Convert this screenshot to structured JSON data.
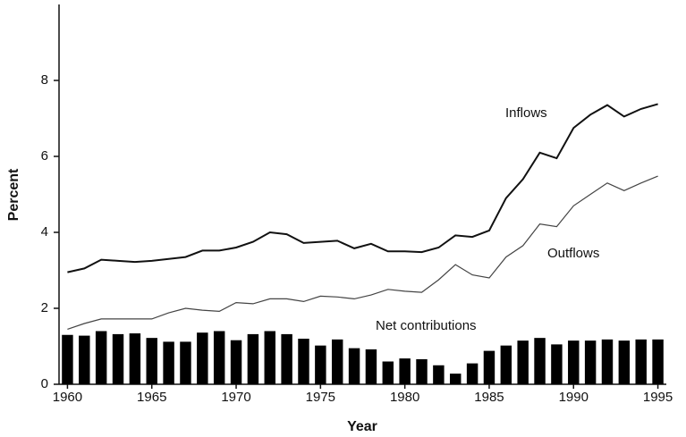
{
  "chart_data": {
    "type": "combo",
    "x_label": "Year",
    "y_label": "Percent",
    "x": [
      1960,
      1961,
      1962,
      1963,
      1964,
      1965,
      1966,
      1967,
      1968,
      1969,
      1970,
      1971,
      1972,
      1973,
      1974,
      1975,
      1976,
      1977,
      1978,
      1979,
      1980,
      1981,
      1982,
      1983,
      1984,
      1985,
      1986,
      1987,
      1988,
      1989,
      1990,
      1991,
      1992,
      1993,
      1994,
      1995
    ],
    "series": [
      {
        "name": "Inflows",
        "type": "line",
        "color": "#111111",
        "values": [
          2.95,
          3.05,
          3.28,
          3.25,
          3.22,
          3.25,
          3.3,
          3.35,
          3.52,
          3.52,
          3.6,
          3.75,
          4.0,
          3.95,
          3.72,
          3.75,
          3.78,
          3.58,
          3.7,
          3.5,
          3.5,
          3.48,
          3.6,
          3.92,
          3.88,
          4.05,
          4.9,
          5.4,
          6.1,
          5.95,
          6.75,
          7.1,
          7.35,
          7.05,
          7.25,
          7.38
        ]
      },
      {
        "name": "Outflows",
        "type": "line",
        "color": "#444444",
        "values": [
          1.45,
          1.6,
          1.72,
          1.72,
          1.72,
          1.72,
          1.88,
          2.0,
          1.95,
          1.92,
          2.15,
          2.12,
          2.25,
          2.25,
          2.18,
          2.32,
          2.3,
          2.25,
          2.35,
          2.5,
          2.45,
          2.42,
          2.75,
          3.15,
          2.88,
          2.8,
          3.35,
          3.65,
          4.22,
          4.15,
          4.7,
          5.0,
          5.3,
          5.1,
          5.3,
          5.48
        ]
      },
      {
        "name": "Net contributions",
        "type": "bar",
        "color": "#000000",
        "values": [
          1.3,
          1.28,
          1.4,
          1.32,
          1.34,
          1.22,
          1.12,
          1.12,
          1.36,
          1.4,
          1.16,
          1.32,
          1.4,
          1.32,
          1.2,
          1.02,
          1.18,
          0.95,
          0.92,
          0.6,
          0.68,
          0.66,
          0.5,
          0.28,
          0.55,
          0.88,
          1.02,
          1.15,
          1.22,
          1.05,
          1.15,
          1.15,
          1.18,
          1.15,
          1.18,
          1.18
        ]
      }
    ],
    "xlim": [
      1959.5,
      1995.5
    ],
    "ylim": [
      0,
      10
    ],
    "xticks": [
      1960,
      1965,
      1970,
      1975,
      1980,
      1985,
      1990,
      1995
    ],
    "yticks": [
      0,
      2,
      4,
      6,
      8
    ]
  }
}
